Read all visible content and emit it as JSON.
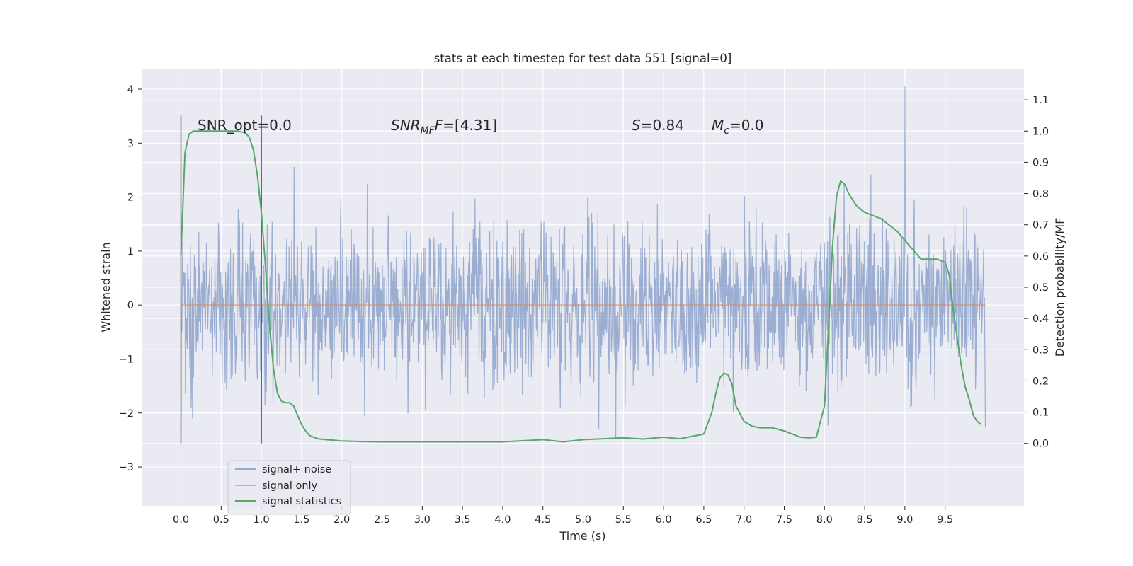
{
  "chart_data": {
    "type": "line",
    "title": "stats at each timestep for test data 551 [signal=0]",
    "xlabel": "Time (s)",
    "ylabel": "Whitened strain",
    "ylabel_right": "Detection probability/MF",
    "xlim": [
      -0.48,
      10.48
    ],
    "ylim": [
      -3.72,
      4.38
    ],
    "ylim_right": [
      -0.2,
      1.2
    ],
    "x_ticks": [
      "0.0",
      "0.5",
      "1.0",
      "1.5",
      "2.0",
      "2.5",
      "3.0",
      "3.5",
      "4.0",
      "4.5",
      "5.0",
      "5.5",
      "6.0",
      "6.5",
      "7.0",
      "7.5",
      "8.0",
      "8.5",
      "9.0",
      "9.5"
    ],
    "y_ticks": [
      "−3",
      "−2",
      "−1",
      "0",
      "1",
      "2",
      "3",
      "4"
    ],
    "y_ticks_right": [
      "0.0",
      "0.1",
      "0.2",
      "0.3",
      "0.4",
      "0.5",
      "0.6",
      "0.7",
      "0.8",
      "0.9",
      "1.0",
      "1.1"
    ],
    "grid": true,
    "legend_position": "lower-left",
    "colors": {
      "background": "#eaeaf2",
      "grid": "#ffffff",
      "noise": "#4c72b0",
      "signal": "#dd8452",
      "stats": "#55a868",
      "vline": "#555555"
    },
    "series": [
      {
        "name": "signal+ noise",
        "axis": "left",
        "description_kind": "noise",
        "x_range": [
          0.0,
          10.0
        ],
        "core_amplitude": 1.5,
        "spike_max": 4.05
      },
      {
        "name": "signal only",
        "axis": "left",
        "x": [
          0.0,
          10.0
        ],
        "y": [
          0.0,
          0.0
        ]
      },
      {
        "name": "signal statistics",
        "axis": "right",
        "x": [
          0.0,
          0.05,
          0.1,
          0.15,
          0.2,
          0.3,
          0.5,
          0.7,
          0.8,
          0.85,
          0.9,
          0.95,
          1.0,
          1.05,
          1.1,
          1.15,
          1.2,
          1.25,
          1.3,
          1.35,
          1.4,
          1.45,
          1.5,
          1.55,
          1.6,
          1.7,
          1.8,
          1.9,
          2.0,
          2.25,
          2.5,
          2.75,
          3.0,
          3.5,
          4.0,
          4.2,
          4.5,
          4.75,
          5.0,
          5.25,
          5.5,
          5.75,
          6.0,
          6.2,
          6.5,
          6.6,
          6.65,
          6.7,
          6.75,
          6.8,
          6.85,
          6.9,
          7.0,
          7.1,
          7.2,
          7.35,
          7.5,
          7.6,
          7.7,
          7.8,
          7.9,
          8.0,
          8.05,
          8.1,
          8.15,
          8.2,
          8.25,
          8.3,
          8.4,
          8.5,
          8.6,
          8.7,
          8.8,
          8.9,
          9.0,
          9.1,
          9.2,
          9.3,
          9.4,
          9.5,
          9.55,
          9.6,
          9.65,
          9.7,
          9.75,
          9.8,
          9.85,
          9.9,
          9.95
        ],
        "y": [
          0.6,
          0.93,
          0.99,
          1.0,
          1.0,
          1.0,
          1.0,
          1.0,
          0.995,
          0.98,
          0.94,
          0.86,
          0.74,
          0.57,
          0.38,
          0.24,
          0.16,
          0.135,
          0.13,
          0.13,
          0.12,
          0.09,
          0.06,
          0.04,
          0.025,
          0.015,
          0.012,
          0.01,
          0.008,
          0.006,
          0.005,
          0.005,
          0.005,
          0.005,
          0.005,
          0.008,
          0.012,
          0.005,
          0.012,
          0.015,
          0.018,
          0.014,
          0.02,
          0.015,
          0.03,
          0.1,
          0.16,
          0.21,
          0.225,
          0.22,
          0.19,
          0.12,
          0.07,
          0.055,
          0.05,
          0.05,
          0.04,
          0.03,
          0.02,
          0.018,
          0.02,
          0.12,
          0.37,
          0.63,
          0.79,
          0.84,
          0.83,
          0.8,
          0.76,
          0.74,
          0.73,
          0.72,
          0.7,
          0.68,
          0.65,
          0.62,
          0.59,
          0.59,
          0.59,
          0.58,
          0.54,
          0.43,
          0.34,
          0.25,
          0.18,
          0.14,
          0.09,
          0.07,
          0.06
        ]
      }
    ],
    "vlines": [
      0.0,
      1.0
    ],
    "annotations": {
      "snr_opt": "SNR_opt=0.0",
      "snr_mf_sym": "SNR",
      "snr_mf_sub": "MF",
      "snr_mf_val": "=[4.31]",
      "s_sym": "S",
      "s_val": "=0.84",
      "mc_sym": "M",
      "mc_sub": "c",
      "mc_val": "=0.0"
    }
  }
}
